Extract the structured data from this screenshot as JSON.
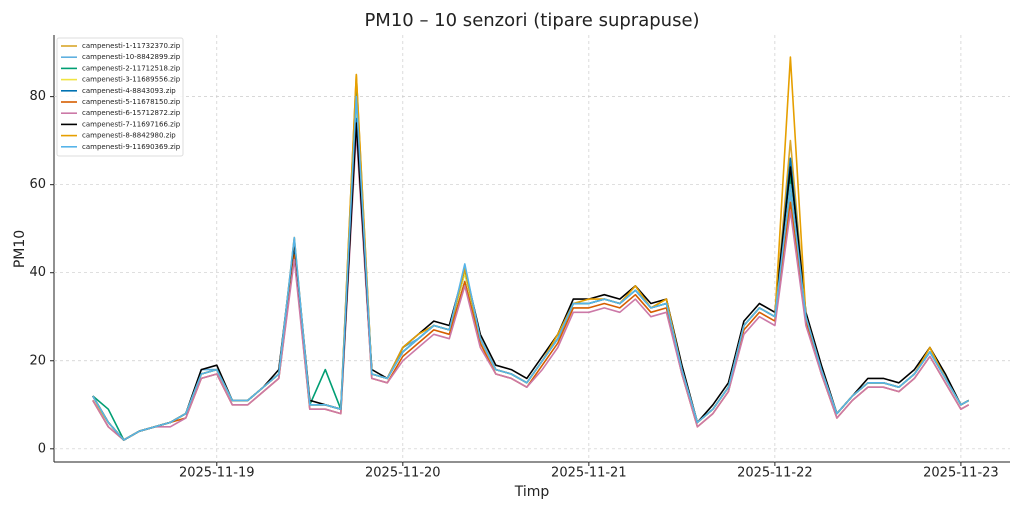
{
  "chart_data": {
    "type": "line",
    "title": "PM10 – 10 senzori (tipare suprapuse)",
    "x_label": "Timp",
    "y_label": "PM10",
    "x": [
      "2025-11-18T08:00",
      "2025-11-18T10:00",
      "2025-11-18T12:00",
      "2025-11-18T14:00",
      "2025-11-18T16:00",
      "2025-11-18T18:00",
      "2025-11-18T20:00",
      "2025-11-18T22:00",
      "2025-11-19T00:00",
      "2025-11-19T02:00",
      "2025-11-19T04:00",
      "2025-11-19T06:00",
      "2025-11-19T08:00",
      "2025-11-19T10:00",
      "2025-11-19T12:00",
      "2025-11-19T14:00",
      "2025-11-19T16:00",
      "2025-11-19T18:00",
      "2025-11-19T20:00",
      "2025-11-19T22:00",
      "2025-11-20T00:00",
      "2025-11-20T02:00",
      "2025-11-20T04:00",
      "2025-11-20T06:00",
      "2025-11-20T08:00",
      "2025-11-20T10:00",
      "2025-11-20T12:00",
      "2025-11-20T14:00",
      "2025-11-20T16:00",
      "2025-11-20T18:00",
      "2025-11-20T20:00",
      "2025-11-20T22:00",
      "2025-11-21T00:00",
      "2025-11-21T02:00",
      "2025-11-21T04:00",
      "2025-11-21T06:00",
      "2025-11-21T08:00",
      "2025-11-21T10:00",
      "2025-11-21T12:00",
      "2025-11-21T14:00",
      "2025-11-21T16:00",
      "2025-11-21T18:00",
      "2025-11-21T20:00",
      "2025-11-21T22:00",
      "2025-11-22T00:00",
      "2025-11-22T02:00",
      "2025-11-22T04:00",
      "2025-11-22T06:00",
      "2025-11-22T08:00",
      "2025-11-22T10:00",
      "2025-11-22T12:00",
      "2025-11-22T14:00",
      "2025-11-22T16:00",
      "2025-11-22T18:00",
      "2025-11-22T20:00",
      "2025-11-22T22:00",
      "2025-11-23T00:00",
      "2025-11-23T01:00"
    ],
    "xlim": [
      "2025-11-18T03:00",
      "2025-11-23T06:20"
    ],
    "xticks": [
      "2025-11-19",
      "2025-11-20",
      "2025-11-21",
      "2025-11-22",
      "2025-11-23"
    ],
    "ylim": [
      -3,
      94
    ],
    "yticks": [
      0,
      20,
      40,
      60,
      80
    ],
    "grid": true,
    "legend": "upper left",
    "series": [
      {
        "name": "campenesti-1-11732370.zip",
        "color": "#d9a62a",
        "values": [
          12,
          6,
          2,
          4,
          5,
          6,
          8,
          17,
          18,
          11,
          11,
          14,
          17,
          47,
          10,
          10,
          9,
          85,
          17,
          16,
          22,
          25,
          28,
          27,
          40,
          25,
          18,
          17,
          15,
          20,
          25,
          33,
          33,
          34,
          33,
          37,
          32,
          34,
          18,
          6,
          9,
          14,
          28,
          32,
          30,
          70,
          30,
          18,
          8,
          12,
          15,
          15,
          14,
          17,
          23,
          16,
          10,
          11
        ]
      },
      {
        "name": "campenesti-10-8842899.zip",
        "color": "#5fb0e0",
        "values": [
          12,
          6,
          2,
          4,
          5,
          6,
          8,
          18,
          18,
          11,
          11,
          14,
          17,
          46,
          10,
          10,
          9,
          78,
          17,
          16,
          23,
          25,
          28,
          27,
          41,
          25,
          18,
          17,
          15,
          20,
          25,
          33,
          33,
          34,
          33,
          36,
          32,
          33,
          18,
          6,
          9,
          14,
          28,
          32,
          30,
          58,
          30,
          18,
          8,
          12,
          15,
          15,
          14,
          17,
          22,
          16,
          10,
          11
        ]
      },
      {
        "name": "campenesti-2-11712518.zip",
        "color": "#009e73",
        "values": [
          12,
          9,
          2,
          4,
          5,
          6,
          8,
          17,
          18,
          11,
          11,
          14,
          17,
          46,
          10,
          18,
          9,
          82,
          17,
          16,
          22,
          25,
          28,
          27,
          40,
          25,
          18,
          17,
          15,
          20,
          25,
          33,
          33,
          34,
          33,
          36,
          32,
          33,
          18,
          6,
          9,
          14,
          28,
          32,
          30,
          62,
          30,
          18,
          8,
          12,
          15,
          15,
          14,
          17,
          22,
          16,
          10,
          11
        ]
      },
      {
        "name": "campenesti-3-11689556.zip",
        "color": "#f0e442",
        "values": [
          11,
          6,
          2,
          4,
          5,
          6,
          8,
          17,
          18,
          11,
          11,
          14,
          17,
          45,
          10,
          10,
          9,
          76,
          17,
          16,
          22,
          25,
          28,
          27,
          40,
          25,
          18,
          17,
          15,
          20,
          25,
          33,
          33,
          34,
          33,
          36,
          32,
          33,
          18,
          6,
          9,
          14,
          28,
          32,
          30,
          60,
          30,
          18,
          8,
          12,
          15,
          15,
          14,
          17,
          22,
          16,
          10,
          11
        ]
      },
      {
        "name": "campenesti-4-8843093.zip",
        "color": "#0072b2",
        "values": [
          12,
          6,
          2,
          4,
          5,
          6,
          8,
          17,
          18,
          11,
          11,
          14,
          17,
          46,
          10,
          10,
          9,
          75,
          17,
          16,
          22,
          25,
          28,
          27,
          41,
          25,
          18,
          17,
          15,
          20,
          25,
          33,
          33,
          34,
          33,
          36,
          32,
          33,
          18,
          6,
          9,
          14,
          28,
          32,
          30,
          66,
          30,
          18,
          8,
          12,
          15,
          15,
          14,
          17,
          22,
          16,
          10,
          11
        ]
      },
      {
        "name": "campenesti-5-11678150.zip",
        "color": "#d55e00",
        "values": [
          11,
          5,
          2,
          4,
          5,
          6,
          7,
          16,
          17,
          10,
          10,
          13,
          16,
          44,
          9,
          9,
          8,
          74,
          16,
          15,
          21,
          24,
          27,
          26,
          38,
          24,
          17,
          16,
          14,
          19,
          24,
          32,
          32,
          33,
          32,
          35,
          31,
          32,
          17,
          5,
          8,
          13,
          27,
          31,
          29,
          56,
          29,
          17,
          7,
          11,
          14,
          14,
          13,
          16,
          21,
          15,
          9,
          10
        ]
      },
      {
        "name": "campenesti-6-15712872.zip",
        "color": "#cc79a7",
        "values": [
          11,
          5,
          2,
          4,
          5,
          5,
          7,
          16,
          17,
          10,
          10,
          13,
          16,
          43,
          9,
          9,
          8,
          72,
          16,
          15,
          20,
          23,
          26,
          25,
          37,
          23,
          17,
          16,
          14,
          18,
          23,
          31,
          31,
          32,
          31,
          34,
          30,
          31,
          17,
          5,
          8,
          13,
          26,
          30,
          28,
          54,
          28,
          17,
          7,
          11,
          14,
          14,
          13,
          16,
          21,
          15,
          9,
          10
        ]
      },
      {
        "name": "campenesti-7-11697166.zip",
        "color": "#000000",
        "values": [
          12,
          6,
          2,
          4,
          5,
          6,
          8,
          18,
          19,
          11,
          11,
          14,
          18,
          47,
          11,
          10,
          9,
          74,
          18,
          16,
          23,
          26,
          29,
          28,
          41,
          26,
          19,
          18,
          16,
          21,
          26,
          34,
          34,
          35,
          34,
          37,
          33,
          34,
          19,
          6,
          10,
          15,
          29,
          33,
          31,
          64,
          31,
          19,
          8,
          12,
          16,
          16,
          15,
          18,
          23,
          17,
          10,
          11
        ]
      },
      {
        "name": "campenesti-8-8842980.zip",
        "color": "#e69f00",
        "values": [
          12,
          6,
          2,
          4,
          5,
          6,
          8,
          17,
          18,
          11,
          11,
          14,
          17,
          48,
          10,
          10,
          9,
          85,
          17,
          16,
          23,
          26,
          28,
          27,
          41,
          25,
          18,
          17,
          15,
          20,
          26,
          33,
          34,
          34,
          33,
          37,
          32,
          34,
          18,
          6,
          9,
          14,
          28,
          32,
          30,
          89,
          30,
          18,
          8,
          12,
          15,
          15,
          14,
          17,
          23,
          16,
          10,
          11
        ]
      },
      {
        "name": "campenesti-9-11690369.zip",
        "color": "#56b4e9",
        "values": [
          12,
          6,
          2,
          4,
          5,
          6,
          8,
          17,
          18,
          11,
          11,
          14,
          17,
          48,
          10,
          10,
          9,
          80,
          17,
          16,
          22,
          25,
          28,
          27,
          42,
          25,
          18,
          17,
          15,
          20,
          25,
          33,
          33,
          34,
          33,
          36,
          32,
          33,
          18,
          6,
          9,
          14,
          28,
          32,
          30,
          60,
          30,
          18,
          8,
          12,
          15,
          15,
          14,
          17,
          22,
          16,
          10,
          11
        ]
      }
    ]
  }
}
